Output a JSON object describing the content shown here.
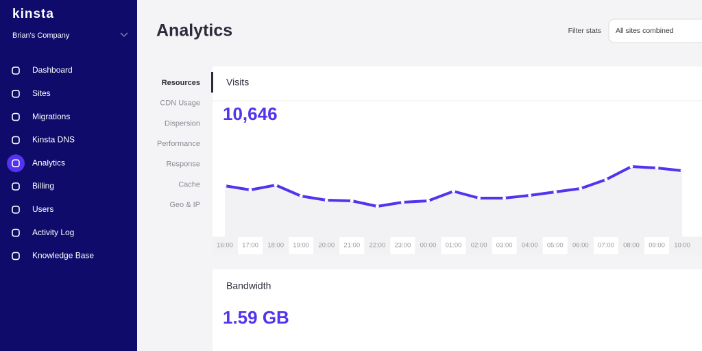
{
  "sidebar": {
    "brand": "kinsta",
    "company": "Brian's Company",
    "nav": [
      "Dashboard",
      "Sites",
      "Migrations",
      "Kinsta DNS",
      "Analytics",
      "Billing",
      "Users",
      "Activity Log",
      "Knowledge Base"
    ]
  },
  "header": {
    "title": "Analytics",
    "filter_label": "Filter stats",
    "filter_value": "All sites combined"
  },
  "subnav": [
    "Resources",
    "CDN Usage",
    "Dispersion",
    "Performance",
    "Response",
    "Cache",
    "Geo & IP"
  ],
  "visits": {
    "title": "Visits",
    "total": "10,646",
    "chart": {
      "type": "line",
      "categories": [
        "16:00",
        "17:00",
        "18:00",
        "19:00",
        "20:00",
        "21:00",
        "22:00",
        "23:00",
        "00:00",
        "01:00",
        "02:00",
        "03:00",
        "04:00",
        "05:00",
        "06:00",
        "07:00",
        "08:00",
        "09:00",
        "10:00"
      ],
      "values": [
        495,
        465,
        500,
        420,
        390,
        385,
        345,
        375,
        385,
        455,
        405,
        405,
        425,
        450,
        475,
        540,
        635,
        625,
        605
      ],
      "color": "#5333ed",
      "ylim": [
        0,
        800
      ]
    }
  },
  "bandwidth": {
    "title": "Bandwidth",
    "total": "1.59 GB"
  }
}
